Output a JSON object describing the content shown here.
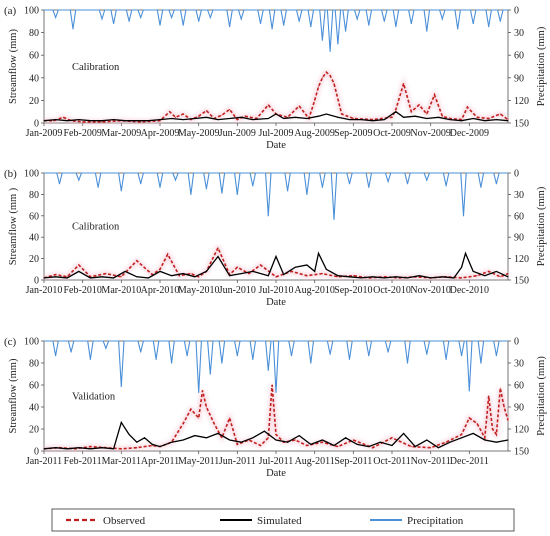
{
  "colors": {
    "observed": "#c0201e",
    "simulated": "#000000",
    "precipitation": "#4a8fd8",
    "axis": "#555555",
    "panel_glow": "#f5c4d2"
  },
  "legend": {
    "observed": "Observed",
    "simulated": "Simulated",
    "precipitation": "Precipitation"
  },
  "chart_data": [
    {
      "type": "line",
      "panel_label": "(a)",
      "annotation": "Calibration",
      "xlabel": "Date",
      "ylabel": "Streamflow (mm)",
      "y2label": "Precipitation (mm)",
      "ylim": [
        0,
        100
      ],
      "yticks": [
        0,
        20,
        40,
        60,
        80,
        100
      ],
      "y2lim": [
        0,
        150
      ],
      "y2ticks": [
        0,
        30,
        60,
        90,
        120,
        150
      ],
      "y2_inverted": true,
      "x_ticks": [
        "Jan-2009",
        "Feb-2009",
        "Mar-2009",
        "Apr-2009",
        "May-2009",
        "Jun-2009",
        "Jul-2009",
        "Aug-2009",
        "Sep-2009",
        "Oct-2009",
        "Nov-2009",
        "Dec-2009"
      ],
      "series": [
        {
          "name": "Observed",
          "style": "dashed",
          "axis": "left",
          "x": [
            0,
            0.25,
            0.5,
            0.7,
            1.0,
            1.5,
            2.0,
            2.5,
            3.0,
            3.25,
            3.4,
            3.6,
            3.8,
            4.0,
            4.2,
            4.4,
            4.6,
            4.8,
            5.0,
            5.2,
            5.5,
            5.8,
            6.0,
            6.3,
            6.6,
            6.85,
            7.0,
            7.1,
            7.2,
            7.3,
            7.4,
            7.5,
            7.7,
            8.0,
            8.5,
            9.0,
            9.1,
            9.3,
            9.5,
            9.7,
            9.9,
            10.1,
            10.3,
            10.5,
            10.8,
            10.95,
            11.2,
            11.5,
            11.8,
            12.0
          ],
          "values": [
            2,
            2,
            5,
            2,
            1,
            1,
            2,
            1,
            2,
            10,
            5,
            8,
            3,
            6,
            11,
            4,
            7,
            12,
            3,
            6,
            4,
            16,
            8,
            5,
            15,
            4,
            20,
            32,
            40,
            45,
            42,
            35,
            8,
            4,
            3,
            5,
            12,
            35,
            10,
            16,
            8,
            25,
            6,
            4,
            3,
            14,
            5,
            4,
            8,
            3
          ]
        },
        {
          "name": "Simulated",
          "style": "solid",
          "axis": "left",
          "x": [
            0,
            0.3,
            0.6,
            0.9,
            1.2,
            1.5,
            1.8,
            2.1,
            2.4,
            2.7,
            3.0,
            3.3,
            3.6,
            3.9,
            4.2,
            4.5,
            4.8,
            5.1,
            5.4,
            5.8,
            6.0,
            6.2,
            6.5,
            6.8,
            7.1,
            7.3,
            7.6,
            7.9,
            8.2,
            8.5,
            8.8,
            9.1,
            9.3,
            9.6,
            9.9,
            10.2,
            10.5,
            10.8,
            11.1,
            11.4,
            11.7,
            12.0
          ],
          "values": [
            2,
            3,
            2,
            3,
            2,
            2,
            3,
            2,
            2,
            2,
            3,
            4,
            3,
            4,
            5,
            3,
            4,
            5,
            3,
            4,
            8,
            4,
            5,
            4,
            6,
            8,
            5,
            3,
            3,
            2,
            3,
            10,
            5,
            6,
            4,
            5,
            3,
            2,
            4,
            2,
            3,
            2
          ]
        },
        {
          "name": "Precipitation",
          "style": "solid",
          "axis": "right",
          "x": [
            0.3,
            0.75,
            1.5,
            1.8,
            2.2,
            2.5,
            3.0,
            3.3,
            3.6,
            4.0,
            4.3,
            4.8,
            5.1,
            5.6,
            5.9,
            6.2,
            6.6,
            6.9,
            7.2,
            7.4,
            7.6,
            7.8,
            8.1,
            8.4,
            8.8,
            9.1,
            9.5,
            9.9,
            10.3,
            10.7,
            11.1,
            11.5,
            11.8
          ],
          "values": [
            10,
            25,
            12,
            18,
            15,
            10,
            20,
            10,
            20,
            15,
            10,
            22,
            12,
            18,
            25,
            20,
            15,
            22,
            40,
            55,
            45,
            28,
            12,
            20,
            15,
            22,
            18,
            28,
            12,
            25,
            18,
            22,
            15
          ]
        }
      ]
    },
    {
      "type": "line",
      "panel_label": "(b)",
      "annotation": "Calibration",
      "xlabel": "Date",
      "ylabel": "Streamflow (mm )",
      "y2label": "Precipitation (mm)",
      "ylim": [
        0,
        100
      ],
      "yticks": [
        0,
        20,
        40,
        60,
        80,
        100
      ],
      "y2lim": [
        0,
        150
      ],
      "y2ticks": [
        0,
        30,
        60,
        90,
        120,
        150
      ],
      "y2_inverted": true,
      "x_ticks": [
        "Jan-2010",
        "Feb-2010",
        "Mar-2010",
        "Apr-2010",
        "May-2010",
        "Jun-2010",
        "Jul-2010",
        "Aug-2010",
        "Sep-2010",
        "Oct-2010",
        "Nov-2010",
        "Dec-2010"
      ],
      "series": [
        {
          "name": "Observed",
          "style": "dashed",
          "axis": "left",
          "x": [
            0,
            0.3,
            0.6,
            0.9,
            1.2,
            1.6,
            2.0,
            2.4,
            2.8,
            3.0,
            3.2,
            3.5,
            3.8,
            4.0,
            4.2,
            4.5,
            4.8,
            5.0,
            5.3,
            5.6,
            6.0,
            6.4,
            6.8,
            7.2,
            7.6,
            8.0,
            8.4,
            8.8,
            9.2,
            9.6,
            10.0,
            10.4,
            10.8,
            11.2,
            11.5,
            11.8,
            12.0
          ],
          "values": [
            2,
            5,
            3,
            14,
            3,
            6,
            3,
            18,
            5,
            10,
            24,
            4,
            6,
            3,
            8,
            30,
            5,
            12,
            6,
            14,
            3,
            8,
            4,
            6,
            3,
            4,
            2,
            3,
            2,
            3,
            2,
            3,
            2,
            4,
            8,
            3,
            6
          ]
        },
        {
          "name": "Simulated",
          "style": "solid",
          "axis": "left",
          "x": [
            0,
            0.3,
            0.6,
            0.9,
            1.2,
            1.5,
            1.8,
            2.1,
            2.4,
            2.7,
            3.0,
            3.3,
            3.6,
            3.9,
            4.2,
            4.5,
            4.8,
            5.1,
            5.4,
            5.8,
            6.0,
            6.2,
            6.5,
            6.8,
            7.0,
            7.1,
            7.3,
            7.6,
            7.9,
            8.2,
            8.5,
            8.8,
            9.1,
            9.4,
            9.7,
            10.0,
            10.3,
            10.6,
            10.8,
            10.9,
            11.1,
            11.4,
            11.7,
            12.0
          ],
          "values": [
            2,
            3,
            2,
            8,
            2,
            3,
            2,
            8,
            3,
            2,
            8,
            4,
            6,
            3,
            8,
            22,
            4,
            6,
            8,
            4,
            22,
            5,
            12,
            14,
            8,
            25,
            10,
            4,
            3,
            2,
            3,
            2,
            3,
            2,
            4,
            2,
            3,
            2,
            12,
            25,
            8,
            4,
            8,
            3
          ]
        },
        {
          "name": "Precipitation",
          "style": "solid",
          "axis": "right",
          "x": [
            0.4,
            0.9,
            1.4,
            2.0,
            2.5,
            3.0,
            3.4,
            3.8,
            4.2,
            4.6,
            5.0,
            5.4,
            5.8,
            6.3,
            6.8,
            7.2,
            7.5,
            7.9,
            8.4,
            8.9,
            9.4,
            9.9,
            10.4,
            10.85,
            11.3,
            11.7
          ],
          "values": [
            15,
            10,
            20,
            25,
            15,
            20,
            10,
            30,
            22,
            28,
            30,
            18,
            60,
            25,
            30,
            20,
            65,
            15,
            20,
            12,
            15,
            10,
            18,
            60,
            20,
            15
          ]
        }
      ]
    },
    {
      "type": "line",
      "panel_label": "(c)",
      "annotation": "Validation",
      "xlabel": "Date",
      "ylabel": "Streamflow (mm)",
      "y2label": "Precipitation (mm)",
      "ylim": [
        0,
        100
      ],
      "yticks": [
        0,
        20,
        40,
        60,
        80,
        100
      ],
      "y2lim": [
        0,
        150
      ],
      "y2ticks": [
        0,
        30,
        60,
        90,
        120,
        150
      ],
      "y2_inverted": true,
      "x_ticks": [
        "Jan-2011",
        "Feb-2011",
        "Mar-2011",
        "Apr-2011",
        "May-2011",
        "Jun-2011",
        "Jul-2011",
        "Aug-2011",
        "Sep-2011",
        "Oct-2011",
        "Nov-2011",
        "Dec-2011"
      ],
      "series": [
        {
          "name": "Observed",
          "style": "dashed",
          "axis": "left",
          "x": [
            0,
            0.4,
            0.8,
            1.2,
            1.6,
            2.0,
            2.4,
            2.8,
            3.0,
            3.3,
            3.6,
            3.8,
            4.0,
            4.1,
            4.2,
            4.4,
            4.6,
            4.8,
            5.0,
            5.3,
            5.6,
            5.8,
            5.9,
            6.0,
            6.2,
            6.5,
            6.8,
            7.2,
            7.6,
            8.0,
            8.5,
            9.0,
            9.5,
            10.0,
            10.4,
            10.8,
            11.0,
            11.2,
            11.4,
            11.5,
            11.6,
            11.7,
            11.8,
            11.9,
            12.0
          ],
          "values": [
            2,
            3,
            2,
            4,
            3,
            2,
            3,
            5,
            4,
            8,
            25,
            38,
            30,
            55,
            40,
            25,
            12,
            30,
            6,
            10,
            5,
            12,
            60,
            15,
            8,
            10,
            5,
            8,
            4,
            10,
            3,
            12,
            4,
            3,
            8,
            15,
            30,
            25,
            12,
            50,
            20,
            15,
            57,
            40,
            28
          ]
        },
        {
          "name": "Simulated",
          "style": "solid",
          "axis": "left",
          "x": [
            0,
            0.3,
            0.6,
            0.9,
            1.2,
            1.5,
            1.8,
            2.0,
            2.2,
            2.4,
            2.6,
            2.8,
            3.0,
            3.3,
            3.6,
            3.9,
            4.2,
            4.5,
            4.8,
            5.1,
            5.4,
            5.7,
            6.0,
            6.3,
            6.6,
            6.9,
            7.2,
            7.5,
            7.8,
            8.1,
            8.4,
            8.7,
            9.0,
            9.3,
            9.6,
            9.9,
            10.2,
            10.5,
            10.8,
            11.1,
            11.4,
            11.7,
            12.0
          ],
          "values": [
            2,
            3,
            2,
            3,
            2,
            3,
            2,
            26,
            15,
            8,
            12,
            6,
            4,
            8,
            10,
            14,
            12,
            16,
            10,
            8,
            12,
            18,
            10,
            8,
            14,
            6,
            10,
            5,
            12,
            6,
            4,
            8,
            5,
            16,
            4,
            10,
            3,
            8,
            12,
            16,
            10,
            8,
            10
          ]
        },
        {
          "name": "Precipitation",
          "style": "solid",
          "axis": "right",
          "x": [
            0.3,
            0.7,
            1.2,
            1.6,
            2.0,
            2.5,
            2.9,
            3.3,
            3.7,
            4.0,
            4.3,
            4.6,
            5.0,
            5.4,
            5.8,
            6.0,
            6.4,
            6.9,
            7.4,
            7.9,
            8.4,
            8.9,
            9.4,
            9.9,
            10.4,
            10.8,
            11.0,
            11.3,
            11.7
          ],
          "values": [
            20,
            15,
            25,
            10,
            62,
            15,
            25,
            30,
            20,
            70,
            45,
            30,
            20,
            25,
            40,
            70,
            20,
            30,
            18,
            25,
            20,
            15,
            30,
            18,
            25,
            20,
            68,
            30,
            20
          ]
        }
      ]
    }
  ]
}
